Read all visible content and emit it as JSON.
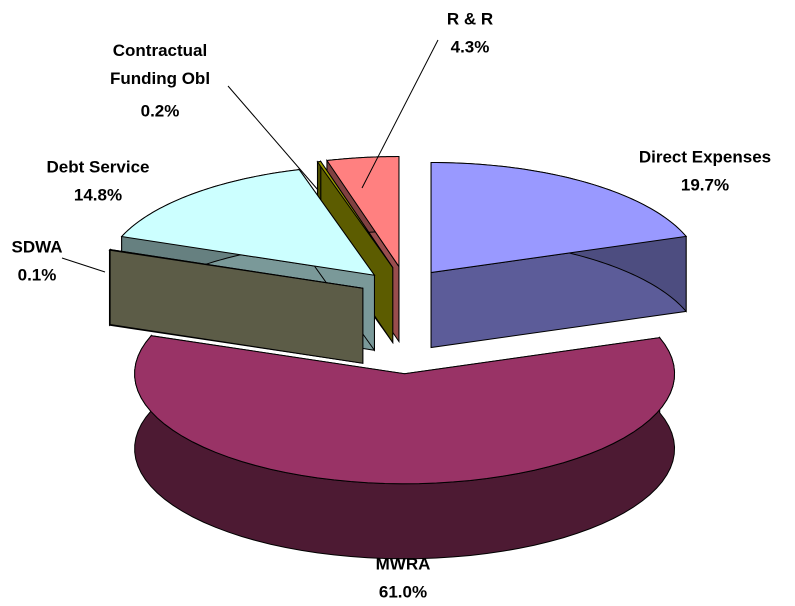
{
  "chart_data": {
    "type": "pie3d",
    "categories": [
      "Direct Expenses",
      "MWRA",
      "SDWA",
      "Debt Service",
      "Contractual Funding Obl",
      "R & R"
    ],
    "values": [
      19.7,
      61.0,
      0.1,
      14.8,
      0.2,
      4.3
    ],
    "value_labels": [
      "19.7%",
      "61.0%",
      "0.1%",
      "14.8%",
      "0.2%",
      "4.3%"
    ],
    "colors": [
      "#9999ff",
      "#993366",
      "#999977",
      "#ccffff",
      "#999900",
      "#ff8080"
    ]
  }
}
